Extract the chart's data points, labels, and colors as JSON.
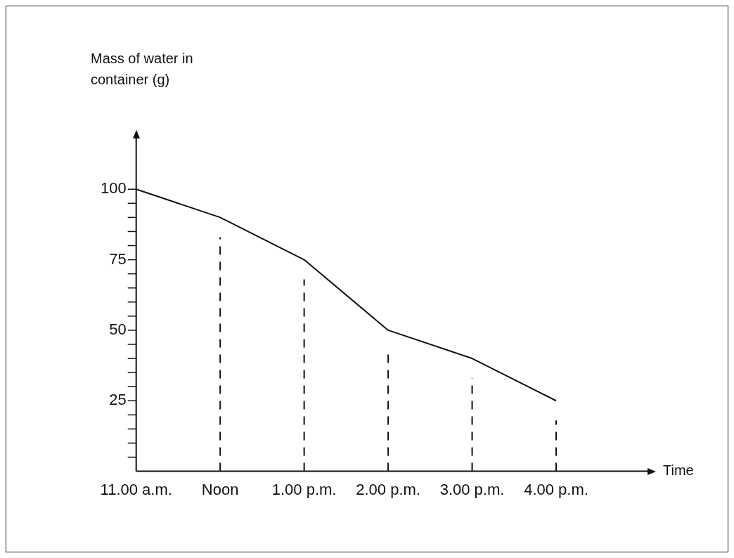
{
  "chart_data": {
    "type": "line",
    "xlabel": "Time",
    "ylabel": "Mass of water in\ncontainer (g)",
    "categories": [
      "11.00 a.m.",
      "Noon",
      "1.00 p.m.",
      "2.00 p.m.",
      "3.00 p.m.",
      "4.00 p.m."
    ],
    "values": [
      100,
      90,
      75,
      50,
      40,
      25
    ],
    "color": "#111111",
    "ylim": [
      0,
      118
    ],
    "yticks": [
      {
        "value": 5,
        "label": null
      },
      {
        "value": 10,
        "label": null
      },
      {
        "value": 15,
        "label": null
      },
      {
        "value": 20,
        "label": null
      },
      25,
      {
        "value": 30,
        "label": null
      },
      {
        "value": 35,
        "label": null
      },
      {
        "value": 40,
        "label": null
      },
      {
        "value": 45,
        "label": null
      },
      50,
      {
        "value": 55,
        "label": null
      },
      {
        "value": 60,
        "label": null
      },
      {
        "value": 65,
        "label": null
      },
      {
        "value": 70,
        "label": null
      },
      75,
      {
        "value": 80,
        "label": null
      },
      {
        "value": 85,
        "label": null
      },
      {
        "value": 90,
        "label": null
      },
      {
        "value": 95,
        "label": null
      },
      100
    ],
    "ref_lines": [
      {
        "axis": "x",
        "value": "Noon",
        "line_style": "dashed",
        "color": "#111111"
      },
      {
        "axis": "x",
        "value": "1.00 p.m.",
        "line_style": "dashed",
        "color": "#111111"
      },
      {
        "axis": "x",
        "value": "2.00 p.m.",
        "line_style": "dashed",
        "color": "#111111"
      },
      {
        "axis": "x",
        "value": "3.00 p.m.",
        "line_style": "dashed",
        "color": "#111111"
      },
      {
        "axis": "x",
        "value": "4.00 p.m.",
        "line_style": "dashed",
        "color": "#111111"
      }
    ],
    "grid": false,
    "legend": false,
    "marker": "none",
    "line_style": "solid"
  }
}
